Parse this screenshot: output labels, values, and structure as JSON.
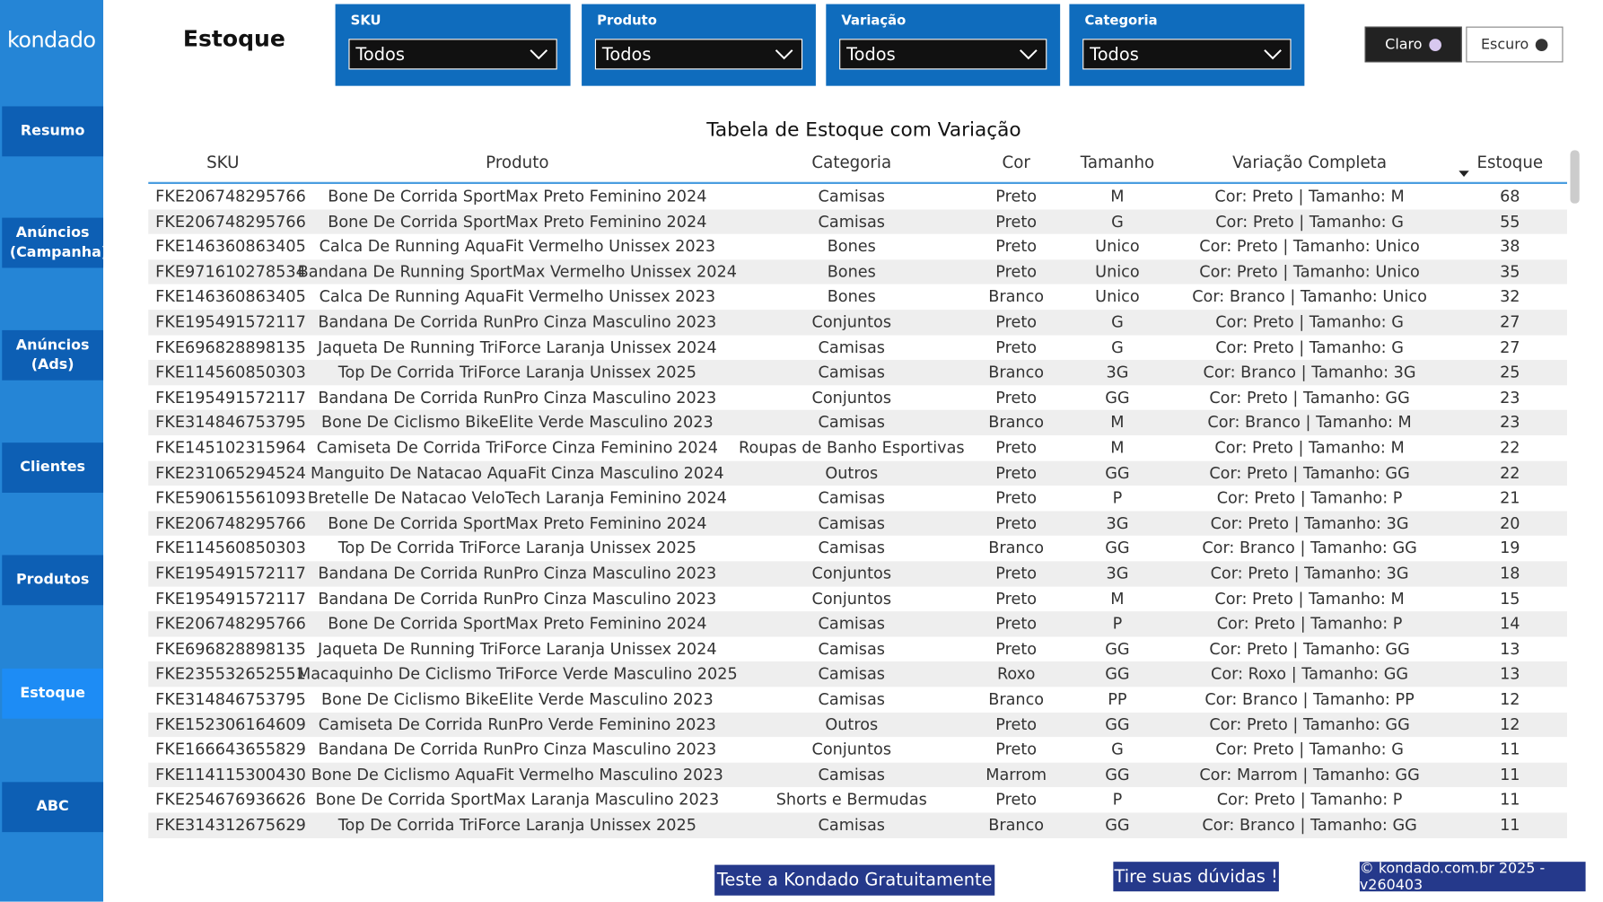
{
  "sidebar": {
    "logo": "kondado",
    "nav": [
      "Resumo",
      "Anúncios (Campanha)",
      "Anúncios (Ads)",
      "Clientes",
      "Produtos",
      "Estoque",
      "ABC"
    ],
    "active": 5
  },
  "header": {
    "title": "Estoque"
  },
  "filters": [
    {
      "label": "SKU",
      "value": "Todos"
    },
    {
      "label": "Produto",
      "value": "Todos"
    },
    {
      "label": "Variação",
      "value": "Todos"
    },
    {
      "label": "Categoria",
      "value": "Todos"
    }
  ],
  "theme": {
    "light": "Claro",
    "dark": "Escuro"
  },
  "table": {
    "title": "Tabela de Estoque com Variação",
    "columns": [
      "SKU",
      "Produto",
      "Categoria",
      "Cor",
      "Tamanho",
      "Variação Completa",
      "Estoque"
    ],
    "rows": [
      [
        "FKE206748295766",
        "Bone De Corrida SportMax Preto Feminino 2024",
        "Camisas",
        "Preto",
        "M",
        "Cor: Preto | Tamanho: M",
        68
      ],
      [
        "FKE206748295766",
        "Bone De Corrida SportMax Preto Feminino 2024",
        "Camisas",
        "Preto",
        "G",
        "Cor: Preto | Tamanho: G",
        55
      ],
      [
        "FKE146360863405",
        "Calca De Running AquaFit Vermelho Unissex 2023",
        "Bones",
        "Preto",
        "Unico",
        "Cor: Preto | Tamanho: Unico",
        38
      ],
      [
        "FKE971610278534",
        "Bandana De Running SportMax Vermelho Unissex 2024",
        "Bones",
        "Preto",
        "Unico",
        "Cor: Preto | Tamanho: Unico",
        35
      ],
      [
        "FKE146360863405",
        "Calca De Running AquaFit Vermelho Unissex 2023",
        "Bones",
        "Branco",
        "Unico",
        "Cor: Branco | Tamanho: Unico",
        32
      ],
      [
        "FKE195491572117",
        "Bandana De Corrida RunPro Cinza Masculino 2023",
        "Conjuntos",
        "Preto",
        "G",
        "Cor: Preto | Tamanho: G",
        27
      ],
      [
        "FKE696828898135",
        "Jaqueta De Running TriForce Laranja Unissex 2024",
        "Camisas",
        "Preto",
        "G",
        "Cor: Preto | Tamanho: G",
        27
      ],
      [
        "FKE114560850303",
        "Top De Corrida TriForce Laranja Unissex 2025",
        "Camisas",
        "Branco",
        "3G",
        "Cor: Branco | Tamanho: 3G",
        25
      ],
      [
        "FKE195491572117",
        "Bandana De Corrida RunPro Cinza Masculino 2023",
        "Conjuntos",
        "Preto",
        "GG",
        "Cor: Preto | Tamanho: GG",
        23
      ],
      [
        "FKE314846753795",
        "Bone De Ciclismo BikeElite Verde Masculino 2023",
        "Camisas",
        "Branco",
        "M",
        "Cor: Branco | Tamanho: M",
        23
      ],
      [
        "FKE145102315964",
        "Camiseta De Corrida TriForce Cinza Feminino 2024",
        "Roupas de Banho Esportivas",
        "Preto",
        "M",
        "Cor: Preto | Tamanho: M",
        22
      ],
      [
        "FKE231065294524",
        "Manguito De Natacao AquaFit Cinza Masculino 2024",
        "Outros",
        "Preto",
        "GG",
        "Cor: Preto | Tamanho: GG",
        22
      ],
      [
        "FKE590615561093",
        "Bretelle De Natacao VeloTech Laranja Feminino 2024",
        "Camisas",
        "Preto",
        "P",
        "Cor: Preto | Tamanho: P",
        21
      ],
      [
        "FKE206748295766",
        "Bone De Corrida SportMax Preto Feminino 2024",
        "Camisas",
        "Preto",
        "3G",
        "Cor: Preto | Tamanho: 3G",
        20
      ],
      [
        "FKE114560850303",
        "Top De Corrida TriForce Laranja Unissex 2025",
        "Camisas",
        "Branco",
        "GG",
        "Cor: Branco | Tamanho: GG",
        19
      ],
      [
        "FKE195491572117",
        "Bandana De Corrida RunPro Cinza Masculino 2023",
        "Conjuntos",
        "Preto",
        "3G",
        "Cor: Preto | Tamanho: 3G",
        18
      ],
      [
        "FKE195491572117",
        "Bandana De Corrida RunPro Cinza Masculino 2023",
        "Conjuntos",
        "Preto",
        "M",
        "Cor: Preto | Tamanho: M",
        15
      ],
      [
        "FKE206748295766",
        "Bone De Corrida SportMax Preto Feminino 2024",
        "Camisas",
        "Preto",
        "P",
        "Cor: Preto | Tamanho: P",
        14
      ],
      [
        "FKE696828898135",
        "Jaqueta De Running TriForce Laranja Unissex 2024",
        "Camisas",
        "Preto",
        "GG",
        "Cor: Preto | Tamanho: GG",
        13
      ],
      [
        "FKE235532652551",
        "Macaquinho De Ciclismo TriForce Verde Masculino 2025",
        "Camisas",
        "Roxo",
        "GG",
        "Cor: Roxo | Tamanho: GG",
        13
      ],
      [
        "FKE314846753795",
        "Bone De Ciclismo BikeElite Verde Masculino 2023",
        "Camisas",
        "Branco",
        "PP",
        "Cor: Branco | Tamanho: PP",
        12
      ],
      [
        "FKE152306164609",
        "Camiseta De Corrida RunPro Verde Feminino 2023",
        "Outros",
        "Preto",
        "GG",
        "Cor: Preto | Tamanho: GG",
        12
      ],
      [
        "FKE166643655829",
        "Bandana De Corrida RunPro Cinza Masculino 2023",
        "Conjuntos",
        "Preto",
        "G",
        "Cor: Preto | Tamanho: G",
        11
      ],
      [
        "FKE114115300430",
        "Bone De Ciclismo AquaFit Vermelho Masculino 2023",
        "Camisas",
        "Marrom",
        "GG",
        "Cor: Marrom | Tamanho: GG",
        11
      ],
      [
        "FKE254676936626",
        "Bone De Corrida SportMax Laranja Masculino 2023",
        "Shorts e Bermudas",
        "Preto",
        "P",
        "Cor: Preto | Tamanho: P",
        11
      ],
      [
        "FKE314312675629",
        "Top De Corrida TriForce Laranja Unissex 2025",
        "Camisas",
        "Branco",
        "GG",
        "Cor: Branco | Tamanho: GG",
        11
      ]
    ]
  },
  "footer": {
    "trial": "Teste a Kondado Gratuitamente",
    "help": "Tire suas dúvidas !",
    "copyright": "© kondado.com.br 2025 - v260403"
  }
}
